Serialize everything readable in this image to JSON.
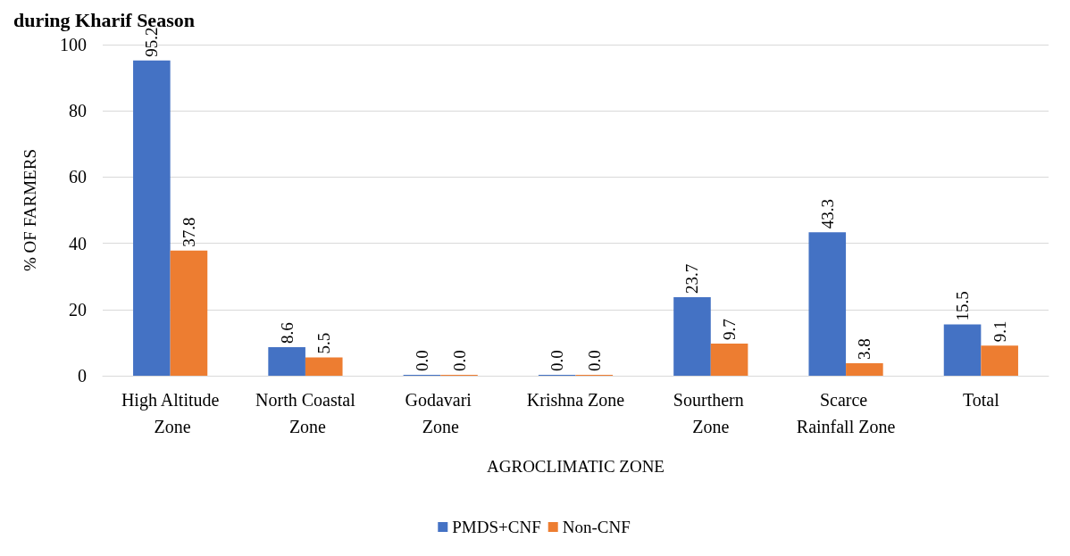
{
  "chart_data": {
    "type": "bar",
    "title": "during Kharif Season",
    "xlabel": "AGROCLIMATIC ZONE",
    "ylabel": "% OF FARMERS",
    "categories": [
      "High Altitude Zone",
      "North Coastal Zone",
      "Godavari Zone",
      "Krishna Zone",
      "Sourthern Zone",
      "Scarce Rainfall Zone",
      "Total"
    ],
    "series": [
      {
        "name": "PMDS+CNF",
        "color": "#4472c4",
        "values": [
          95.2,
          8.6,
          0,
          0,
          23.7,
          43.3,
          15.5
        ],
        "value_labels": [
          "95.2",
          "8.6",
          "0.0",
          "0.0",
          "23.7",
          "43.3",
          "15.5"
        ]
      },
      {
        "name": "Non-CNF",
        "color": "#ed7d31",
        "values": [
          37.8,
          5.5,
          0,
          0,
          9.7,
          3.8,
          9.1
        ],
        "value_labels": [
          "37.8",
          "5.5",
          "0.0",
          "0.0",
          "9.7",
          "3.8",
          "9.1"
        ]
      }
    ],
    "ylim": [
      0,
      100
    ],
    "yticks": [
      0,
      20,
      40,
      60,
      80,
      100
    ],
    "grid": "y",
    "legend": "bottom"
  }
}
